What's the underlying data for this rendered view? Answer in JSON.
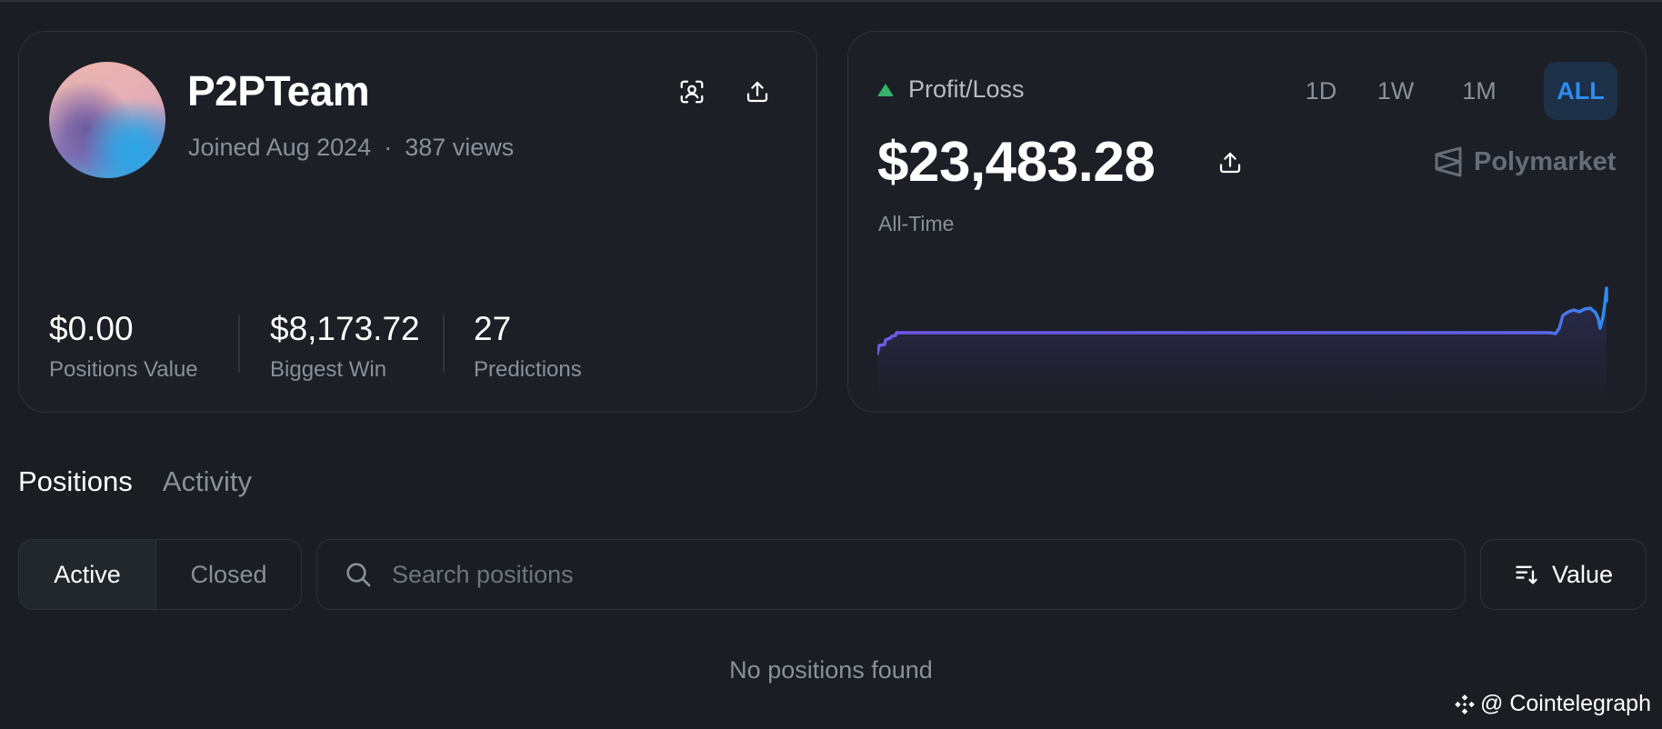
{
  "profile": {
    "username": "P2PTeam",
    "joined": "Joined Aug 2024",
    "separator": "·",
    "views": "387 views",
    "stats": [
      {
        "value": "$0.00",
        "label": "Positions Value"
      },
      {
        "value": "$8,173.72",
        "label": "Biggest Win"
      },
      {
        "value": "27",
        "label": "Predictions"
      }
    ],
    "icons": {
      "scan": "scan-user-icon",
      "share": "share-icon"
    }
  },
  "pnl": {
    "label": "Profit/Loss",
    "value": "$23,483.28",
    "period": "All-Time",
    "ranges": [
      "1D",
      "1W",
      "1M",
      "ALL"
    ],
    "selected_range": "ALL",
    "brand": "Polymarket",
    "colors": {
      "up": "#35b36b",
      "line": "#6a5ee8",
      "accent": "#2d8cf0"
    }
  },
  "tabs": {
    "positions": "Positions",
    "activity": "Activity",
    "active_tab": "Positions"
  },
  "filters": {
    "active": "Active",
    "closed": "Closed",
    "search_placeholder": "Search positions",
    "search_value": "",
    "sort_label": "Value"
  },
  "empty_state": "No positions found",
  "watermark": "@ Cointelegraph"
}
